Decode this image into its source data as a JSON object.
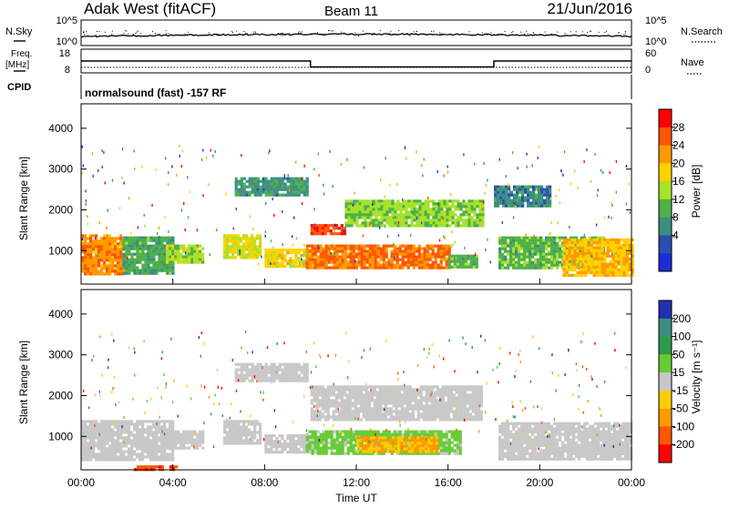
{
  "header": {
    "site": "Adak West (fitACF)",
    "beam": "Beam 11",
    "date": "21/Jun/2016"
  },
  "top_panels": {
    "nsky_label": "N.Sky",
    "nsky_ticks": [
      "10^5",
      "10^0"
    ],
    "nsearch_label": "N.Search",
    "nsearch_ticks": [
      "10^5",
      "10^0"
    ],
    "freq_label": "Freq.",
    "freq_unit": "[MHz]",
    "freq_ticks": [
      "18",
      "8"
    ],
    "nave_label": "Nave",
    "nave_ticks": [
      "60",
      "0"
    ],
    "cpid_label": "CPID",
    "cpid_text": "normalsound (fast) -157 RF"
  },
  "axes": {
    "y_label": "Slant Range [km]",
    "y_ticks": [
      "4000",
      "3000",
      "2000",
      "1000"
    ],
    "x_ticks": [
      "00:00",
      "04:00",
      "08:00",
      "12:00",
      "16:00",
      "20:00",
      "00:00"
    ],
    "x_label": "Time UT"
  },
  "colorbars": {
    "power": {
      "label": "Power [dB]",
      "ticks": [
        "28",
        "24",
        "20",
        "16",
        "12",
        "8",
        "4"
      ],
      "colors": [
        "#ff0000",
        "#ff5500",
        "#ff9900",
        "#ffd200",
        "#a8e22a",
        "#4fb04a",
        "#3a8f80",
        "#2a4fb0",
        "#1d2bd9"
      ]
    },
    "velocity": {
      "label": "Velocity [m s⁻¹]",
      "ticks": [
        "200",
        "100",
        "50",
        "15",
        "-15",
        "-50",
        "-100",
        "-200"
      ],
      "colors": [
        "#2030b0",
        "#3a8f80",
        "#2f9a4a",
        "#66cc33",
        "#c8c8c8",
        "#ffcc00",
        "#ff9900",
        "#ff5500",
        "#ff0000"
      ]
    }
  },
  "chart_data": [
    {
      "type": "line",
      "title": "N.Sky",
      "x_range_hours": [
        0,
        24
      ],
      "y_scale": "log",
      "ylim": [
        1,
        100000
      ]
    },
    {
      "type": "line",
      "title": "Freq. [MHz]",
      "x_range_hours": [
        0,
        24
      ],
      "ylim": [
        8,
        18
      ],
      "series": [
        {
          "name": "Freq. [MHz]",
          "x": [
            0,
            0.1,
            10.0,
            10.0,
            18.0,
            18.0,
            24
          ],
          "values": [
            13.0,
            13.0,
            13.0,
            10.5,
            10.5,
            13.0,
            13.0
          ]
        },
        {
          "name": "Nave",
          "x": [
            0,
            24
          ],
          "values": [
            10,
            10
          ]
        }
      ]
    },
    {
      "type": "heatmap",
      "title": "Power [dB]",
      "xlabel": "Time UT",
      "ylabel": "Slant Range [km]",
      "xlim": [
        0,
        24
      ],
      "ylim": [
        180,
        4600
      ],
      "clim": [
        0,
        30
      ],
      "regions": [
        {
          "t": [
            0.0,
            1.8
          ],
          "r": [
            450,
            1400
          ],
          "value": 22
        },
        {
          "t": [
            1.8,
            4.0
          ],
          "r": [
            450,
            1350
          ],
          "value": 11
        },
        {
          "t": [
            3.7,
            5.3
          ],
          "r": [
            700,
            1150
          ],
          "value": 15
        },
        {
          "t": [
            6.2,
            7.8
          ],
          "r": [
            800,
            1400
          ],
          "value": 17
        },
        {
          "t": [
            6.7,
            9.8
          ],
          "r": [
            2350,
            2800
          ],
          "value": 9
        },
        {
          "t": [
            8.0,
            10.2
          ],
          "r": [
            600,
            1050
          ],
          "value": 18
        },
        {
          "t": [
            9.8,
            16.0
          ],
          "r": [
            550,
            1150
          ],
          "value": 24
        },
        {
          "t": [
            10.0,
            11.5
          ],
          "r": [
            1400,
            1650
          ],
          "value": 26
        },
        {
          "t": [
            11.5,
            17.5
          ],
          "r": [
            1600,
            2250
          ],
          "value": 14
        },
        {
          "t": [
            16.0,
            17.2
          ],
          "r": [
            600,
            900
          ],
          "value": 12
        },
        {
          "t": [
            18.0,
            20.5
          ],
          "r": [
            2100,
            2600
          ],
          "value": 8
        },
        {
          "t": [
            18.2,
            22.8
          ],
          "r": [
            550,
            1350
          ],
          "value": 12
        },
        {
          "t": [
            21.0,
            24.0
          ],
          "r": [
            400,
            1300
          ],
          "value": 20
        }
      ]
    },
    {
      "type": "heatmap",
      "title": "Velocity [m s⁻¹]",
      "xlabel": "Time UT",
      "ylabel": "Slant Range [km]",
      "xlim": [
        0,
        24
      ],
      "ylim": [
        180,
        4600
      ],
      "clim": [
        -200,
        200
      ],
      "regions": [
        {
          "t": [
            0.0,
            4.0
          ],
          "r": [
            450,
            1400
          ],
          "value": 0
        },
        {
          "t": [
            3.7,
            5.3
          ],
          "r": [
            700,
            1150
          ],
          "value": 0
        },
        {
          "t": [
            6.2,
            7.8
          ],
          "r": [
            800,
            1400
          ],
          "value": 0
        },
        {
          "t": [
            6.7,
            9.8
          ],
          "r": [
            2350,
            2800
          ],
          "value": 0
        },
        {
          "t": [
            8.0,
            10.2
          ],
          "r": [
            600,
            1050
          ],
          "value": 0
        },
        {
          "t": [
            9.8,
            16.5
          ],
          "r": [
            550,
            1150
          ],
          "value": 30
        },
        {
          "t": [
            12.0,
            15.5
          ],
          "r": [
            650,
            1000
          ],
          "value": -70
        },
        {
          "t": [
            10.0,
            17.5
          ],
          "r": [
            1400,
            2250
          ],
          "value": 0
        },
        {
          "t": [
            18.2,
            24.0
          ],
          "r": [
            450,
            1350
          ],
          "value": 0
        },
        {
          "t": [
            2.3,
            4.1
          ],
          "r": [
            200,
            290
          ],
          "value": -150
        }
      ]
    }
  ]
}
